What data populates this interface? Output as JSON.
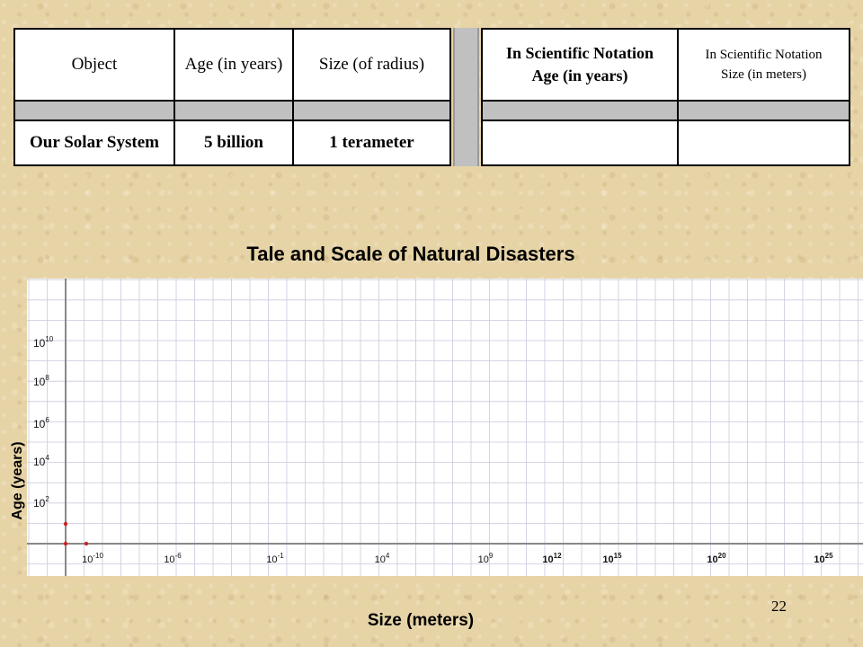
{
  "table": {
    "headers": [
      "Object",
      "Age (in years)",
      "Size (of radius)"
    ],
    "rows": [
      [
        "Our  Solar System",
        "5 billion",
        "1 terameter"
      ]
    ]
  },
  "sci_table": {
    "header_age": [
      "In Scientific Notation",
      "Age (in years)"
    ],
    "header_size": [
      "In Scientific Notation",
      "Size (in meters)"
    ]
  },
  "page_number": "22",
  "chart_data": {
    "type": "scatter",
    "title": "Tale and Scale of Natural Disasters",
    "xlabel": "Size (meters)",
    "ylabel": "Age (years)",
    "x_scale": "log",
    "y_scale": "log",
    "x_ticks": [
      {
        "base": "10",
        "exp": "-10"
      },
      {
        "base": "10",
        "exp": "-6"
      },
      {
        "base": "10",
        "exp": "-1"
      },
      {
        "base": "10",
        "exp": "4"
      },
      {
        "base": "10",
        "exp": "9"
      },
      {
        "base": "10",
        "exp": "12"
      },
      {
        "base": "10",
        "exp": "15"
      },
      {
        "base": "10",
        "exp": "20"
      },
      {
        "base": "10",
        "exp": "25"
      }
    ],
    "y_ticks": [
      {
        "base": "10",
        "exp": "2"
      },
      {
        "base": "10",
        "exp": "4"
      },
      {
        "base": "10",
        "exp": "6"
      },
      {
        "base": "10",
        "exp": "8"
      },
      {
        "base": "10",
        "exp": "10"
      }
    ],
    "grid": true,
    "series": [],
    "colors": {
      "grid": "#c9c9de",
      "axis": "#888888",
      "plot_bg": "#ffffff",
      "marker": "#cc2222"
    }
  }
}
